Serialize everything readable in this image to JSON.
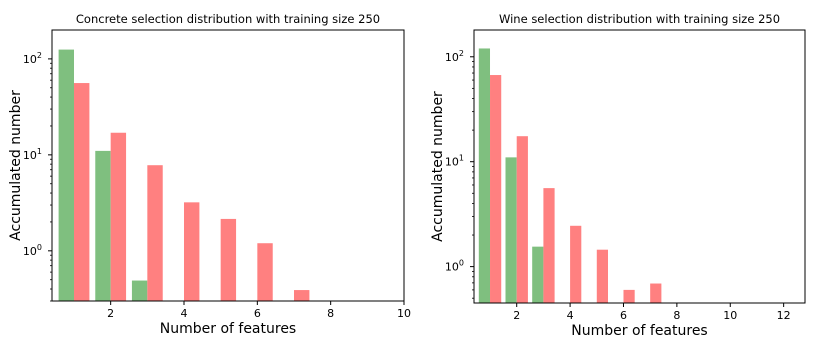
{
  "chart_data": [
    {
      "type": "bar",
      "title": "Concrete selection distribution with training size 250",
      "xlabel": "Number of features",
      "ylabel": "Accumulated number",
      "xlim": [
        0.4,
        10
      ],
      "ylim": [
        0.3,
        200
      ],
      "yscale": "log",
      "xticks": [
        2,
        4,
        6,
        8,
        10
      ],
      "yticks": [
        {
          "value": 1,
          "base": "10",
          "exp": "0"
        },
        {
          "value": 10,
          "base": "10",
          "exp": "1"
        },
        {
          "value": 100,
          "base": "10",
          "exp": "2"
        }
      ],
      "grid": false,
      "series": [
        {
          "color": "#7fbf7f",
          "points": [
            {
              "x": 1,
              "y": 125
            },
            {
              "x": 2,
              "y": 11
            },
            {
              "x": 3,
              "y": 0.49
            }
          ]
        },
        {
          "color": "#ff8080",
          "points": [
            {
              "x": 1,
              "y": 56
            },
            {
              "x": 2,
              "y": 17
            },
            {
              "x": 3,
              "y": 7.8
            },
            {
              "x": 4,
              "y": 3.2
            },
            {
              "x": 5,
              "y": 2.15
            },
            {
              "x": 6,
              "y": 1.2
            },
            {
              "x": 7,
              "y": 0.39
            }
          ]
        }
      ]
    },
    {
      "type": "bar",
      "title": "Wine selection distribution with training size 250",
      "xlabel": "Number of features",
      "ylabel": "Accumulated number",
      "xlim": [
        0.4,
        12.8
      ],
      "ylim": [
        0.45,
        180
      ],
      "yscale": "log",
      "xticks": [
        2,
        4,
        6,
        8,
        10,
        12
      ],
      "yticks": [
        {
          "value": 1,
          "base": "10",
          "exp": "0"
        },
        {
          "value": 10,
          "base": "10",
          "exp": "1"
        },
        {
          "value": 100,
          "base": "10",
          "exp": "2"
        }
      ],
      "grid": false,
      "series": [
        {
          "color": "#7fbf7f",
          "points": [
            {
              "x": 1,
              "y": 120
            },
            {
              "x": 2,
              "y": 11
            },
            {
              "x": 3,
              "y": 1.55
            }
          ]
        },
        {
          "color": "#ff8080",
          "points": [
            {
              "x": 1,
              "y": 67
            },
            {
              "x": 2,
              "y": 17.5
            },
            {
              "x": 3,
              "y": 5.6
            },
            {
              "x": 4,
              "y": 2.45
            },
            {
              "x": 5,
              "y": 1.45
            },
            {
              "x": 6,
              "y": 0.6
            },
            {
              "x": 7,
              "y": 0.69
            }
          ]
        }
      ]
    }
  ]
}
